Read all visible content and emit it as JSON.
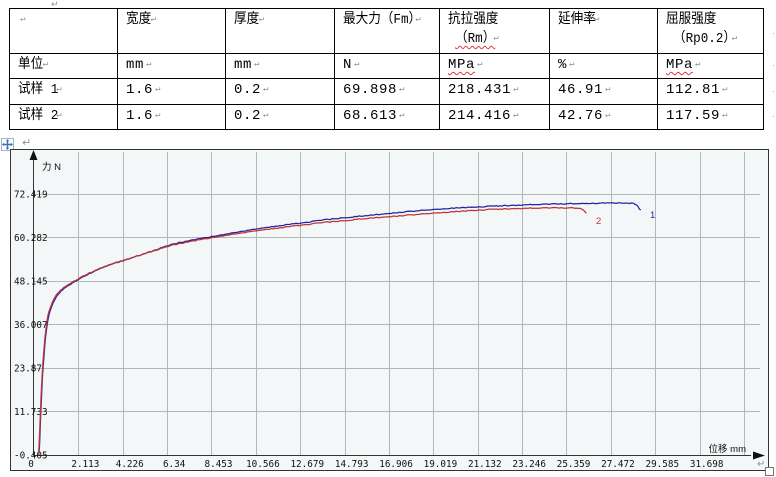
{
  "marks": {
    "paragraph": "↵",
    "row_end": "·"
  },
  "table": {
    "header": [
      {
        "lines": [
          ""
        ]
      },
      {
        "lines": [
          "宽度"
        ]
      },
      {
        "lines": [
          "厚度"
        ]
      },
      {
        "lines": [
          "最大力（Fm）"
        ]
      },
      {
        "lines": [
          "抗拉强度",
          "（Rm）"
        ],
        "wavy_line": 1
      },
      {
        "lines": [
          "延伸率"
        ]
      },
      {
        "lines": [
          "屈服强度",
          "（Rp0.2）"
        ]
      }
    ],
    "rows": [
      {
        "cells": [
          {
            "text": "单位"
          },
          {
            "text": "mm"
          },
          {
            "text": "mm"
          },
          {
            "text": "N"
          },
          {
            "text": "MPa",
            "wavy": true
          },
          {
            "text": "%"
          },
          {
            "text": "MPa",
            "wavy": true
          }
        ]
      },
      {
        "cells": [
          {
            "text": "试样 1"
          },
          {
            "text": "1.6"
          },
          {
            "text": "0.2"
          },
          {
            "text": "69.898"
          },
          {
            "text": "218.431"
          },
          {
            "text": "46.91"
          },
          {
            "text": "112.81"
          }
        ]
      },
      {
        "cells": [
          {
            "text": "试样 2"
          },
          {
            "text": "1.6"
          },
          {
            "text": "0.2"
          },
          {
            "text": "68.613"
          },
          {
            "text": "214.416"
          },
          {
            "text": "42.76"
          },
          {
            "text": "117.59"
          }
        ]
      }
    ]
  },
  "chart_data": {
    "type": "line",
    "xlabel": "位移 mm",
    "ylabel": "力 N",
    "x_tick_labels": [
      "0",
      "2.113",
      "4.226",
      "6.34",
      "8.453",
      "10.566",
      "12.679",
      "14.793",
      "16.906",
      "19.019",
      "21.132",
      "23.246",
      "25.359",
      "27.472",
      "29.585",
      "31.698"
    ],
    "x_tick_values": [
      0,
      2.113,
      4.226,
      6.34,
      8.453,
      10.566,
      12.679,
      14.793,
      16.906,
      19.019,
      21.132,
      23.246,
      25.359,
      27.472,
      29.585,
      31.698
    ],
    "y_tick_labels": [
      "72.419",
      "60.282",
      "48.145",
      "36.007",
      "23.87",
      "11.733",
      "-0.405"
    ],
    "y_tick_values": [
      72.419,
      60.282,
      48.145,
      36.007,
      23.87,
      11.733,
      -0.405
    ],
    "grid": true,
    "series": [
      {
        "name": "1",
        "color": "#2323a0",
        "points": [
          [
            0.22,
            -0.3
          ],
          [
            0.26,
            2
          ],
          [
            0.3,
            8
          ],
          [
            0.35,
            15
          ],
          [
            0.4,
            21
          ],
          [
            0.46,
            26
          ],
          [
            0.52,
            30.5
          ],
          [
            0.58,
            34
          ],
          [
            0.66,
            37.2
          ],
          [
            0.74,
            39.3
          ],
          [
            0.85,
            41.2
          ],
          [
            1.0,
            43.0
          ],
          [
            1.2,
            44.8
          ],
          [
            1.45,
            46.1
          ],
          [
            1.75,
            47.3
          ],
          [
            2.113,
            48.5
          ],
          [
            2.55,
            49.9
          ],
          [
            3.1,
            51.5
          ],
          [
            3.65,
            52.7
          ],
          [
            4.226,
            53.8
          ],
          [
            5.0,
            55.3
          ],
          [
            5.7,
            56.6
          ],
          [
            6.34,
            58.0
          ],
          [
            7.4,
            59.4
          ],
          [
            8.453,
            60.5
          ],
          [
            9.5,
            61.6
          ],
          [
            10.566,
            62.6
          ],
          [
            11.6,
            63.5
          ],
          [
            12.679,
            64.3
          ],
          [
            13.7,
            65.1
          ],
          [
            14.793,
            65.8
          ],
          [
            15.85,
            66.4
          ],
          [
            16.906,
            67.0
          ],
          [
            18.0,
            67.6
          ],
          [
            19.019,
            68.1
          ],
          [
            20.1,
            68.5
          ],
          [
            21.132,
            68.8
          ],
          [
            22.2,
            69.1
          ],
          [
            23.246,
            69.35
          ],
          [
            24.3,
            69.55
          ],
          [
            25.359,
            69.7
          ],
          [
            26.3,
            69.8
          ],
          [
            27.2,
            69.88
          ],
          [
            27.9,
            69.9
          ],
          [
            28.45,
            69.85
          ],
          [
            28.62,
            69.6
          ],
          [
            28.75,
            69.0
          ],
          [
            28.84,
            68.2
          ],
          [
            28.9,
            67.9
          ]
        ]
      },
      {
        "name": "2",
        "color": "#c03434",
        "points": [
          [
            0.2,
            -0.3
          ],
          [
            0.24,
            2
          ],
          [
            0.28,
            8
          ],
          [
            0.33,
            15
          ],
          [
            0.38,
            21
          ],
          [
            0.44,
            26.5
          ],
          [
            0.5,
            31
          ],
          [
            0.56,
            34.5
          ],
          [
            0.64,
            37.8
          ],
          [
            0.72,
            39.8
          ],
          [
            0.83,
            41.6
          ],
          [
            0.98,
            43.4
          ],
          [
            1.18,
            45.1
          ],
          [
            1.43,
            46.3
          ],
          [
            1.73,
            47.5
          ],
          [
            2.113,
            48.7
          ],
          [
            2.55,
            50.1
          ],
          [
            3.1,
            51.6
          ],
          [
            3.65,
            52.8
          ],
          [
            4.226,
            53.9
          ],
          [
            5.0,
            55.3
          ],
          [
            5.7,
            56.5
          ],
          [
            6.34,
            57.8
          ],
          [
            7.4,
            59.1
          ],
          [
            8.453,
            60.2
          ],
          [
            9.5,
            61.2
          ],
          [
            10.566,
            62.1
          ],
          [
            11.6,
            62.9
          ],
          [
            12.679,
            63.7
          ],
          [
            13.7,
            64.4
          ],
          [
            14.793,
            65.0
          ],
          [
            15.85,
            65.6
          ],
          [
            16.906,
            66.1
          ],
          [
            18.0,
            66.6
          ],
          [
            19.019,
            67.1
          ],
          [
            20.1,
            67.5
          ],
          [
            21.132,
            67.9
          ],
          [
            22.2,
            68.2
          ],
          [
            23.246,
            68.4
          ],
          [
            24.0,
            68.5
          ],
          [
            24.8,
            68.55
          ],
          [
            25.4,
            68.55
          ],
          [
            25.9,
            68.5
          ],
          [
            26.1,
            68.2
          ],
          [
            26.22,
            67.6
          ],
          [
            26.3,
            67.1
          ]
        ]
      }
    ]
  }
}
